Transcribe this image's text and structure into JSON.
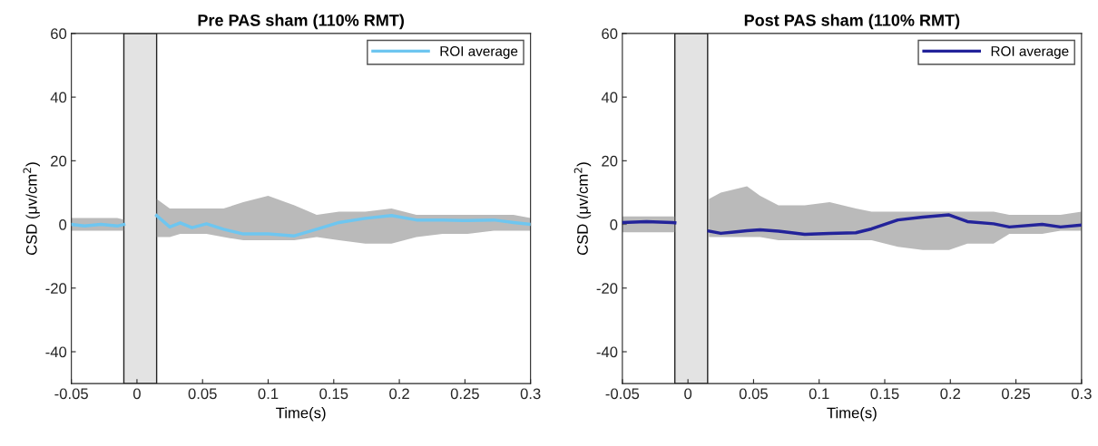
{
  "chart_data": [
    {
      "type": "line",
      "title": "Pre PAS sham (110% RMT)",
      "xlabel": "Time(s)",
      "ylabel": "CSD (μv/cm$^{2}$)",
      "xlim": [
        -0.05,
        0.3
      ],
      "xticks": [
        -0.05,
        0,
        0.05,
        0.1,
        0.15,
        0.2,
        0.25,
        0.3
      ],
      "ylim": [
        -50,
        60
      ],
      "yticks": [
        -40,
        -20,
        0,
        20,
        40,
        60
      ],
      "grid": false,
      "legend": "top right",
      "bands": [
        {
          "axis": "x",
          "from": -0.01,
          "to": 0.015,
          "color": "#e3e3e3"
        }
      ],
      "series": [
        {
          "name": "ROI average",
          "color": "#6ec6f0",
          "x": [
            -0.05,
            -0.04,
            -0.0275,
            -0.015,
            -0.01,
            0,
            0.015,
            0.025,
            0.033,
            0.042,
            0.053,
            0.066,
            0.081,
            0.1,
            0.12,
            0.137,
            0.154,
            0.174,
            0.194,
            0.213,
            0.233,
            0.252,
            0.272,
            0.287,
            0.3
          ],
          "values": [
            0,
            -0.5,
            0,
            -0.5,
            0,
            null,
            2.8,
            -0.8,
            0.5,
            -1,
            0.2,
            -1.5,
            -3,
            -3,
            -3.6,
            -1.5,
            0.6,
            1.9,
            2.8,
            1.4,
            1.4,
            1.2,
            1.4,
            0.6,
            0
          ],
          "lower": [
            -2,
            -2,
            -2,
            -2,
            -2,
            null,
            -4,
            -4,
            -3,
            -3,
            -3,
            -4,
            -5,
            -5,
            -5,
            -4,
            -5,
            -6,
            -6,
            -4,
            -3,
            -3,
            -2,
            -2,
            -2
          ],
          "upper": [
            2,
            2,
            2,
            2,
            1.5,
            null,
            8,
            5,
            5,
            5,
            5,
            5,
            7,
            9,
            6,
            3,
            4,
            4,
            5,
            3,
            3,
            3,
            3,
            3,
            2
          ]
        }
      ]
    },
    {
      "type": "line",
      "title": "Post PAS sham (110% RMT)",
      "xlabel": "Time(s)",
      "ylabel": "CSD (μv/cm$^{2}$)",
      "xlim": [
        -0.05,
        0.3
      ],
      "xticks": [
        -0.05,
        0,
        0.05,
        0.1,
        0.15,
        0.2,
        0.25,
        0.3
      ],
      "ylim": [
        -50,
        60
      ],
      "yticks": [
        -40,
        -20,
        0,
        20,
        40,
        60
      ],
      "grid": false,
      "legend": "top right",
      "bands": [
        {
          "axis": "x",
          "from": -0.01,
          "to": 0.015,
          "color": "#e3e3e3"
        }
      ],
      "series": [
        {
          "name": "ROI average",
          "color": "#23239a",
          "x": [
            -0.05,
            -0.0316,
            -0.012,
            -0.01,
            0,
            0.016,
            0.025,
            0.035,
            0.045,
            0.055,
            0.069,
            0.089,
            0.108,
            0.128,
            0.14,
            0.16,
            0.179,
            0.199,
            0.213,
            0.233,
            0.245,
            0.27,
            0.284,
            0.3
          ],
          "values": [
            0.6,
            0.9,
            0.6,
            0.5,
            null,
            -2.1,
            -2.8,
            -2.4,
            -2,
            -1.7,
            -2.1,
            -3.1,
            -2.8,
            -2.6,
            -1.4,
            1.4,
            2.3,
            3,
            0.9,
            0.2,
            -0.8,
            0,
            -0.8,
            -0.2
          ],
          "lower": [
            -2.5,
            -2.5,
            -2.5,
            -2.5,
            null,
            -4,
            -4,
            -4,
            -4,
            -4,
            -5,
            -5,
            -5,
            -5,
            -5,
            -7,
            -8,
            -8,
            -6,
            -6,
            -3,
            -3,
            -2,
            -2
          ],
          "upper": [
            2.5,
            2.5,
            2.5,
            2.5,
            null,
            8,
            10,
            11,
            12,
            9,
            6,
            6,
            7,
            5,
            4,
            4,
            4,
            4,
            4,
            4,
            3,
            3,
            3,
            4
          ]
        }
      ]
    }
  ]
}
